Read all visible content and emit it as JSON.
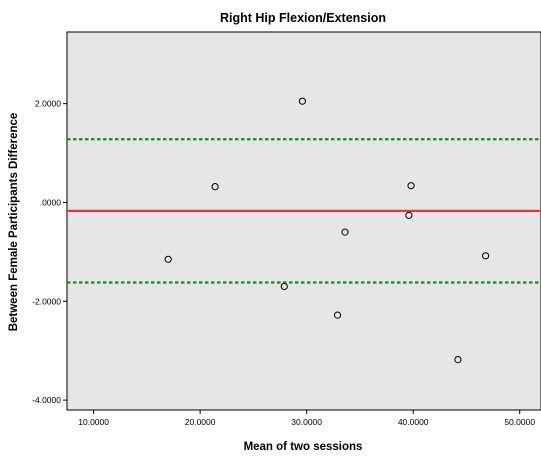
{
  "chart_data": {
    "type": "scatter",
    "title": "Right Hip Flexion/Extension",
    "xlabel": "Mean of two sessions",
    "ylabel": "Between Female Participants Difference",
    "xlim": [
      7.5,
      52.0
    ],
    "ylim": [
      -4.2,
      3.45
    ],
    "x_ticks": [
      10,
      20,
      30,
      40,
      50
    ],
    "x_tick_labels": [
      "10.0000",
      "20.0000",
      "30.0000",
      "40.0000",
      "50.0000"
    ],
    "y_ticks": [
      2,
      0,
      -2,
      -4
    ],
    "y_tick_labels": [
      "2.0000",
      ".0000",
      "-2.0000",
      "-4.0000"
    ],
    "grid": false,
    "background": "#e6e6e6",
    "points": [
      {
        "x": 17.0,
        "y": -1.15
      },
      {
        "x": 21.4,
        "y": 0.32
      },
      {
        "x": 27.9,
        "y": -1.7
      },
      {
        "x": 29.6,
        "y": 2.05
      },
      {
        "x": 32.9,
        "y": -2.28
      },
      {
        "x": 33.6,
        "y": -0.6
      },
      {
        "x": 39.6,
        "y": -0.26
      },
      {
        "x": 39.8,
        "y": 0.34
      },
      {
        "x": 44.2,
        "y": -3.18
      },
      {
        "x": 46.8,
        "y": -1.08
      }
    ],
    "reference_lines": [
      {
        "y": 1.28,
        "style": "dotted",
        "color": "#1a8a2e"
      },
      {
        "y": -0.17,
        "style": "solid",
        "color": "#e8373b"
      },
      {
        "y": -1.62,
        "style": "dotted",
        "color": "#1a8a2e"
      }
    ]
  }
}
